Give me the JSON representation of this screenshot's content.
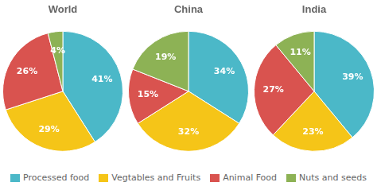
{
  "chart_data": [
    {
      "type": "pie",
      "title": "World",
      "categories": [
        "Processed food",
        "Vegtables and Fruits",
        "Animal Food",
        "Nuts and seeds"
      ],
      "values": [
        41,
        29,
        26,
        4
      ],
      "value_labels": [
        "41%",
        "29%",
        "26%",
        "4%"
      ],
      "colors": [
        "#4bb8c8",
        "#f5c518",
        "#d9534f",
        "#8db255"
      ],
      "data_labels": true,
      "legend": "bottom"
    },
    {
      "type": "pie",
      "title": "China",
      "categories": [
        "Processed food",
        "Vegtables and Fruits",
        "Animal Food",
        "Nuts and seeds"
      ],
      "values": [
        34,
        32,
        15,
        19
      ],
      "value_labels": [
        "34%",
        "32%",
        "15%",
        "19%"
      ],
      "colors": [
        "#4bb8c8",
        "#f5c518",
        "#d9534f",
        "#8db255"
      ],
      "data_labels": true,
      "legend": "bottom"
    },
    {
      "type": "pie",
      "title": "India",
      "categories": [
        "Processed food",
        "Vegtables and Fruits",
        "Animal Food",
        "Nuts and seeds"
      ],
      "values": [
        39,
        23,
        27,
        11
      ],
      "value_labels": [
        "39%",
        "23%",
        "27%",
        "11%"
      ],
      "colors": [
        "#4bb8c8",
        "#f5c518",
        "#d9534f",
        "#8db255"
      ],
      "data_labels": true,
      "legend": "bottom"
    }
  ]
}
